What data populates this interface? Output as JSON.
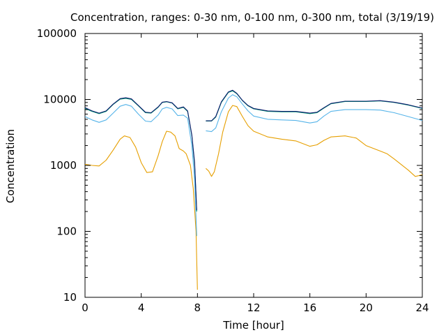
{
  "chart_data": {
    "type": "line",
    "title": "Concentration, ranges: 0-30 nm, 0-100 nm, 0-300 nm, total (3/19/19)",
    "xlabel": "Time [hour]",
    "ylabel": "Concentration",
    "xlim": [
      0,
      24
    ],
    "ylim": [
      10,
      100000
    ],
    "yscale": "log",
    "grid": false,
    "legend": "none",
    "xticks": [
      0,
      4,
      8,
      12,
      16,
      20,
      24
    ],
    "xtick_labels": [
      "0",
      "4",
      "8",
      "12",
      "16",
      "20",
      "24"
    ],
    "yticks": [
      10,
      100,
      1000,
      10000,
      100000
    ],
    "ytick_labels": [
      "10",
      "100",
      "1000",
      "10000",
      "100000"
    ],
    "series": [
      {
        "color": "#e69f00",
        "segments": [
          [
            [
              0,
              1040
            ],
            [
              0.5,
              1000
            ],
            [
              1,
              980
            ],
            [
              1.5,
              1200
            ],
            [
              2,
              1700
            ],
            [
              2.5,
              2500
            ],
            [
              2.8,
              2800
            ],
            [
              3.2,
              2650
            ],
            [
              3.6,
              1900
            ],
            [
              4,
              1100
            ],
            [
              4.4,
              780
            ],
            [
              4.8,
              800
            ],
            [
              5.2,
              1400
            ],
            [
              5.5,
              2300
            ],
            [
              5.8,
              3300
            ],
            [
              6.1,
              3200
            ],
            [
              6.4,
              2800
            ],
            [
              6.7,
              1800
            ],
            [
              7.0,
              1650
            ],
            [
              7.2,
              1500
            ],
            [
              7.5,
              1000
            ],
            [
              7.7,
              450
            ],
            [
              7.9,
              100
            ],
            [
              8.0,
              13
            ]
          ],
          [
            [
              8.6,
              900
            ],
            [
              8.8,
              820
            ],
            [
              9.0,
              680
            ],
            [
              9.2,
              800
            ],
            [
              9.5,
              1500
            ],
            [
              9.8,
              3200
            ],
            [
              10.2,
              6500
            ],
            [
              10.5,
              8100
            ],
            [
              10.8,
              7800
            ],
            [
              11.2,
              5500
            ],
            [
              11.6,
              4000
            ],
            [
              12,
              3300
            ],
            [
              13,
              2700
            ],
            [
              14,
              2500
            ],
            [
              15,
              2350
            ],
            [
              16,
              1950
            ],
            [
              16.5,
              2050
            ],
            [
              17,
              2400
            ],
            [
              17.5,
              2700
            ],
            [
              18.5,
              2800
            ],
            [
              19.3,
              2600
            ],
            [
              20,
              2000
            ],
            [
              21,
              1650
            ],
            [
              21.5,
              1500
            ],
            [
              22,
              1250
            ],
            [
              23,
              850
            ],
            [
              23.5,
              680
            ],
            [
              24,
              720
            ]
          ]
        ]
      },
      {
        "color": "#56b4e9",
        "segments": [
          [
            [
              0,
              5500
            ],
            [
              0.5,
              4900
            ],
            [
              1,
              4500
            ],
            [
              1.5,
              4900
            ],
            [
              2,
              6200
            ],
            [
              2.5,
              7900
            ],
            [
              2.9,
              8400
            ],
            [
              3.3,
              7900
            ],
            [
              3.8,
              6000
            ],
            [
              4.3,
              4700
            ],
            [
              4.7,
              4600
            ],
            [
              5.2,
              5800
            ],
            [
              5.5,
              7200
            ],
            [
              5.8,
              7600
            ],
            [
              6.2,
              7200
            ],
            [
              6.6,
              5700
            ],
            [
              7.0,
              5800
            ],
            [
              7.3,
              5200
            ],
            [
              7.6,
              2000
            ],
            [
              7.8,
              600
            ],
            [
              7.95,
              85
            ]
          ],
          [
            [
              8.6,
              3350
            ],
            [
              9.0,
              3250
            ],
            [
              9.3,
              3700
            ],
            [
              9.7,
              6500
            ],
            [
              10.2,
              10500
            ],
            [
              10.5,
              11800
            ],
            [
              10.8,
              11000
            ],
            [
              11.2,
              8500
            ],
            [
              11.6,
              6700
            ],
            [
              12,
              5600
            ],
            [
              13,
              5000
            ],
            [
              14,
              4900
            ],
            [
              15,
              4800
            ],
            [
              16,
              4400
            ],
            [
              16.5,
              4600
            ],
            [
              17,
              5600
            ],
            [
              17.5,
              6600
            ],
            [
              18.5,
              7000
            ],
            [
              20,
              7000
            ],
            [
              21,
              6900
            ],
            [
              22,
              6300
            ],
            [
              23,
              5500
            ],
            [
              24,
              4800
            ]
          ]
        ]
      },
      {
        "color": "#009e73",
        "segments": [
          [
            [
              0,
              7300
            ],
            [
              0.5,
              6600
            ],
            [
              1,
              6100
            ],
            [
              1.5,
              6600
            ],
            [
              2,
              8400
            ],
            [
              2.5,
              10100
            ],
            [
              2.9,
              10400
            ],
            [
              3.3,
              10000
            ],
            [
              3.8,
              8000
            ],
            [
              4.3,
              6300
            ],
            [
              4.7,
              6200
            ],
            [
              5.2,
              7600
            ],
            [
              5.5,
              9000
            ],
            [
              5.8,
              9200
            ],
            [
              6.2,
              8800
            ],
            [
              6.6,
              7200
            ],
            [
              7.0,
              7600
            ],
            [
              7.3,
              6600
            ],
            [
              7.6,
              2800
            ],
            [
              7.8,
              1000
            ],
            [
              7.95,
              200
            ]
          ],
          [
            [
              8.6,
              4700
            ],
            [
              9.0,
              4700
            ],
            [
              9.3,
              5400
            ],
            [
              9.7,
              9000
            ],
            [
              10.2,
              12800
            ],
            [
              10.5,
              13500
            ],
            [
              10.8,
              12200
            ],
            [
              11.2,
              9600
            ],
            [
              11.6,
              8000
            ],
            [
              12,
              7200
            ],
            [
              13,
              6600
            ],
            [
              14,
              6500
            ],
            [
              15,
              6500
            ],
            [
              16,
              6100
            ],
            [
              16.5,
              6300
            ],
            [
              17,
              7400
            ],
            [
              17.5,
              8600
            ],
            [
              18.5,
              9300
            ],
            [
              20,
              9300
            ],
            [
              21,
              9500
            ],
            [
              22,
              9000
            ],
            [
              23,
              8200
            ],
            [
              24,
              7300
            ]
          ]
        ]
      },
      {
        "color": "#0e1a6e",
        "segments": [
          [
            [
              0,
              7500
            ],
            [
              0.5,
              6700
            ],
            [
              1,
              6200
            ],
            [
              1.5,
              6700
            ],
            [
              2,
              8500
            ],
            [
              2.5,
              10300
            ],
            [
              2.9,
              10600
            ],
            [
              3.3,
              10200
            ],
            [
              3.8,
              8100
            ],
            [
              4.3,
              6400
            ],
            [
              4.7,
              6300
            ],
            [
              5.2,
              7700
            ],
            [
              5.5,
              9100
            ],
            [
              5.8,
              9300
            ],
            [
              6.2,
              8900
            ],
            [
              6.6,
              7300
            ],
            [
              7.0,
              7700
            ],
            [
              7.3,
              6700
            ],
            [
              7.6,
              2900
            ],
            [
              7.8,
              1100
            ],
            [
              7.95,
              210
            ]
          ],
          [
            [
              8.6,
              4750
            ],
            [
              9.0,
              4750
            ],
            [
              9.3,
              5500
            ],
            [
              9.7,
              9200
            ],
            [
              10.2,
              13000
            ],
            [
              10.5,
              13800
            ],
            [
              10.8,
              12400
            ],
            [
              11.2,
              9700
            ],
            [
              11.6,
              8100
            ],
            [
              12,
              7300
            ],
            [
              13,
              6700
            ],
            [
              14,
              6600
            ],
            [
              15,
              6600
            ],
            [
              16,
              6200
            ],
            [
              16.5,
              6400
            ],
            [
              17,
              7500
            ],
            [
              17.5,
              8700
            ],
            [
              18.5,
              9400
            ],
            [
              20,
              9400
            ],
            [
              21,
              9600
            ],
            [
              22,
              9100
            ],
            [
              23,
              8300
            ],
            [
              24,
              7400
            ]
          ]
        ]
      }
    ]
  }
}
